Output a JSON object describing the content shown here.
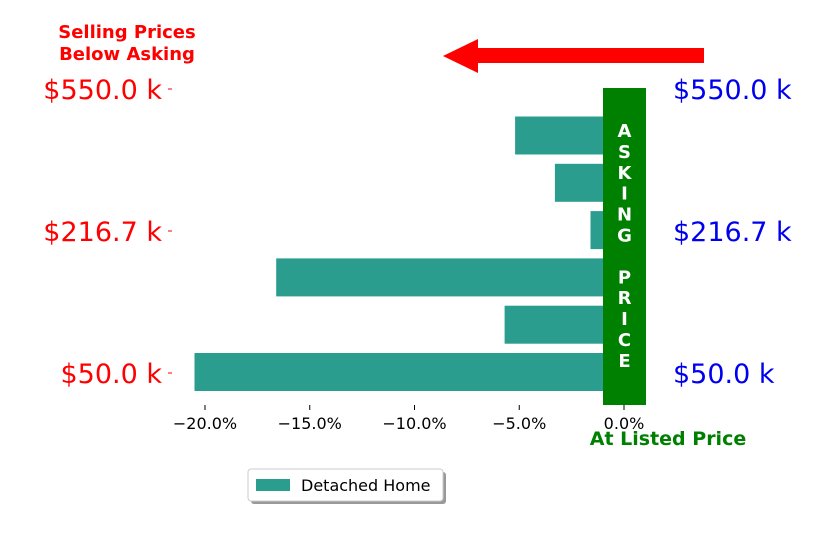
{
  "annotations": {
    "top_left_line1": "Selling Prices",
    "top_left_line2": "Below Asking",
    "bottom_right": "At Listed Price",
    "band_letters": [
      "A",
      "S",
      "K",
      "I",
      "N",
      "G",
      "",
      "P",
      "R",
      "I",
      "C",
      "E"
    ]
  },
  "legend": {
    "label": "Detached Home"
  },
  "colors": {
    "bar": "#2a9d8f",
    "band": "#008000",
    "arrow": "#ff0000",
    "left_ticks": "#ff0000",
    "right_ticks": "#0000ee",
    "annotation_green": "#008000"
  },
  "chart_data": {
    "type": "bar",
    "orientation": "horizontal",
    "series": [
      {
        "name": "Detached Home",
        "values": [
          -20.5,
          -5.7,
          -16.6,
          -1.6,
          -3.3,
          -5.2
        ]
      }
    ],
    "xlim": [
      -21.5,
      1.2
    ],
    "xticks": [
      -20,
      -15,
      -10,
      -5,
      0
    ],
    "xtick_labels": [
      "−20.0%",
      "−15.0%",
      "−10.0%",
      "−5.0%",
      "0.0%"
    ],
    "ytick_labels_left": [
      "$550.0 k",
      "$216.7 k",
      "$50.0 k"
    ],
    "ytick_labels_right": [
      "$550.0 k",
      "$216.7 k",
      "$50.0 k"
    ],
    "legend_position": "bottom-center",
    "grid": false
  }
}
